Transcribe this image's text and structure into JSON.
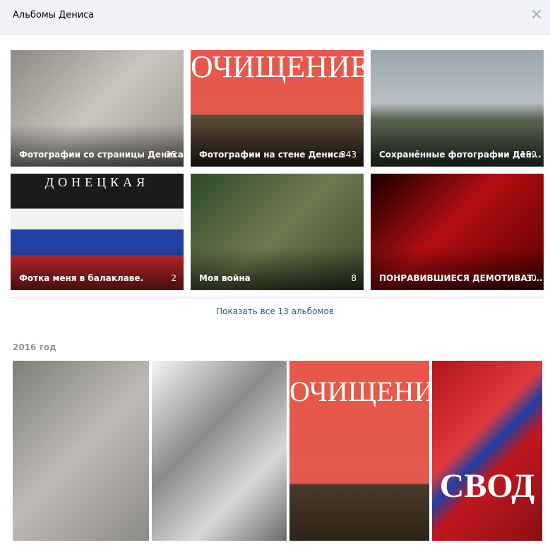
{
  "header": {
    "title": "Альбомы Дениса",
    "close": "×"
  },
  "albums": [
    {
      "name": "Фотографии со страницы Дениса",
      "count": 25,
      "image_text": null
    },
    {
      "name": "Фотографии на стене Дениса",
      "count": 343,
      "image_text": "ОЧИЩЕНИЕ"
    },
    {
      "name": "Сохранённые фотографии Ден...",
      "count": 159,
      "image_text": null
    },
    {
      "name": "Фотка меня в балаклаве.",
      "count": 2,
      "image_text": "ДОНЕЦКАЯ"
    },
    {
      "name": "Моя война",
      "count": 8,
      "image_text": null
    },
    {
      "name": "ПОНРАВИВШИЕСЯ ДЕМОТИВАТ...",
      "count": 30,
      "image_text": null
    }
  ],
  "show_all": "Показать все 13 альбомов",
  "year_section": {
    "title": "2016 год",
    "photos": [
      {
        "image_text": null
      },
      {
        "image_text": null
      },
      {
        "image_text": "ОЧИЩЕНИЕ"
      },
      {
        "image_text": "СВОД"
      }
    ]
  }
}
